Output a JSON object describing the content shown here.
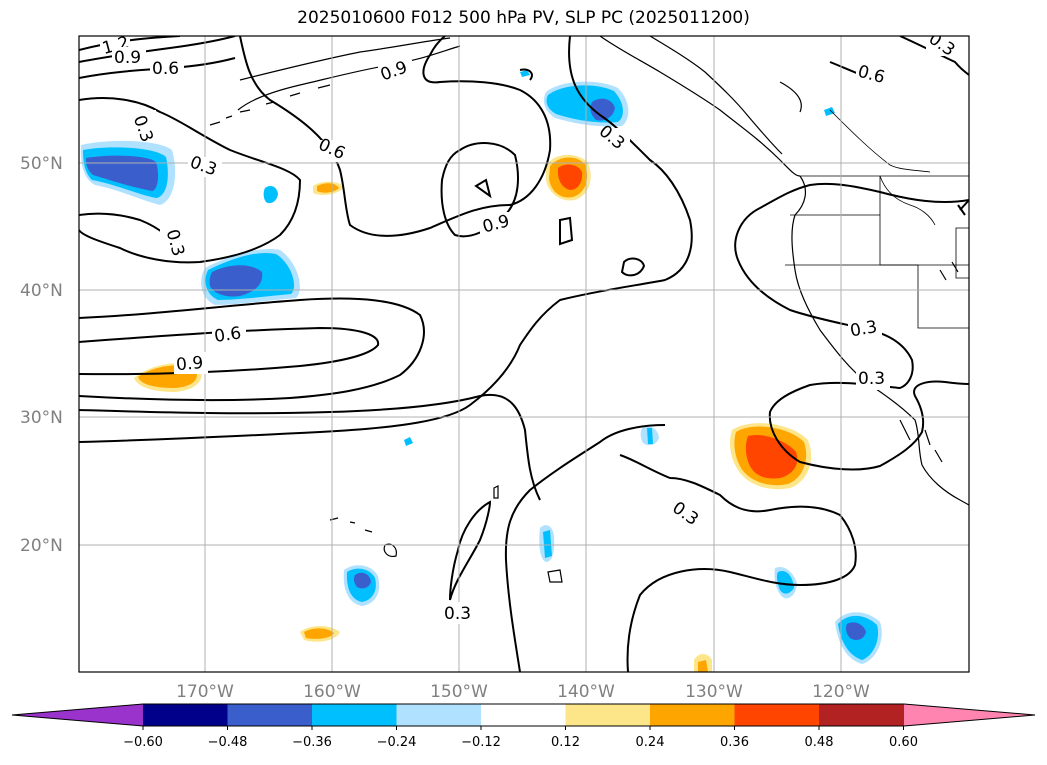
{
  "title": "2025010600 F012 500 hPa PV, SLP PC (2025011200)",
  "map": {
    "lat_labels": [
      "50°N",
      "40°N",
      "30°N",
      "20°N"
    ],
    "lon_labels": [
      "170°W",
      "160°W",
      "150°W",
      "140°W",
      "130°W",
      "120°W"
    ],
    "contour_labels": [
      "1.2",
      "0.9",
      "0.6",
      "0.3",
      "0.3",
      "0.6",
      "0.3",
      "0.9",
      "0.9",
      "0.6",
      "0.9",
      "0.3",
      "0.6",
      "0.3",
      "0.3",
      "0.3",
      "0.3"
    ],
    "grid": true
  },
  "colorbar": {
    "ticks": [
      "−0.60",
      "−0.48",
      "−0.36",
      "−0.24",
      "−0.12",
      "0.12",
      "0.24",
      "0.36",
      "0.48",
      "0.60"
    ],
    "colors": [
      "#9933cc",
      "#00008b",
      "#3a5fcd",
      "#00bfff",
      "#b0e2ff",
      "#ffffff",
      "#fde68a",
      "#ffa500",
      "#ff4500",
      "#b22222",
      "#ff85b0"
    ],
    "extend": "both"
  }
}
